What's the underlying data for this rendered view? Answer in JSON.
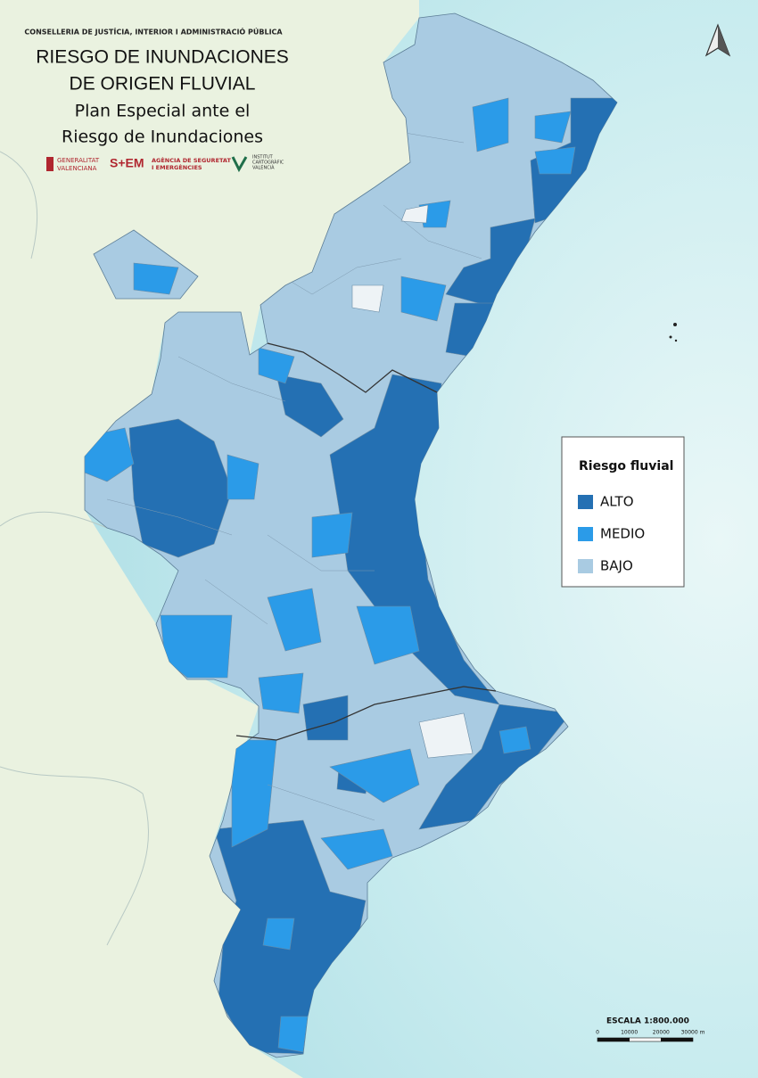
{
  "header": {
    "agency": "CONSELLERIA DE JUSTÍCIA, INTERIOR I ADMINISTRACIÓ PÚBLICA",
    "title": [
      "RIESGO DE INUNDACIONES",
      "DE ORIGEN FLUVIAL"
    ],
    "subtitle": [
      "Plan Especial ante el",
      "Riesgo de Inundaciones"
    ]
  },
  "logos": {
    "generalitat": [
      "GENERALITAT",
      "VALENCIANA"
    ],
    "sem": "S+EM",
    "agencia": [
      "AGÈNCIA DE SEGURETAT",
      "I EMERGÈNCIES"
    ],
    "icv": [
      "INSTITUT",
      "CARTOGRÀFIC",
      "VALENCIÀ"
    ]
  },
  "legend": {
    "title": "Riesgo fluvial",
    "items": [
      {
        "label": "ALTO",
        "color": "#2470b3"
      },
      {
        "label": "MEDIO",
        "color": "#2b9be8"
      },
      {
        "label": "BAJO",
        "color": "#a9cbe2"
      }
    ]
  },
  "scale": {
    "label": "ESCALA  1:800.000",
    "ticks": [
      "0",
      "10000",
      "20000",
      "30000 m"
    ]
  }
}
